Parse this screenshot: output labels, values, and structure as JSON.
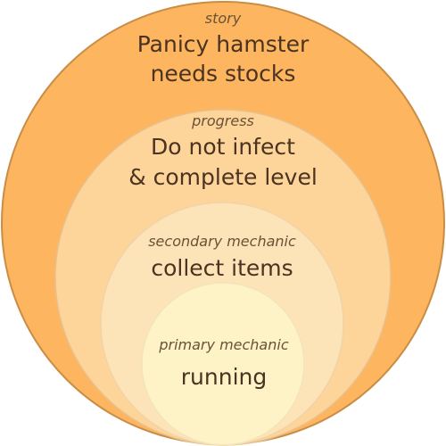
{
  "diagram": {
    "layers": [
      {
        "key": "story",
        "caption": "story",
        "lines": [
          "Panicy hamster",
          "needs stocks"
        ],
        "fill": "#fdb55f",
        "stroke": "#c98d45"
      },
      {
        "key": "progress",
        "caption": "progress",
        "lines": [
          "Do not infect",
          "& complete level"
        ],
        "fill": "#fdd49a",
        "stroke": "#e8c08c"
      },
      {
        "key": "secondary",
        "caption": "secondary mechanic",
        "lines": [
          "collect items"
        ],
        "fill": "#fde4b8",
        "stroke": "#f0d3a6"
      },
      {
        "key": "primary",
        "caption": "primary mechanic",
        "lines": [
          "running"
        ],
        "fill": "#fdf3c6",
        "stroke": "#f2e4b6"
      }
    ]
  }
}
